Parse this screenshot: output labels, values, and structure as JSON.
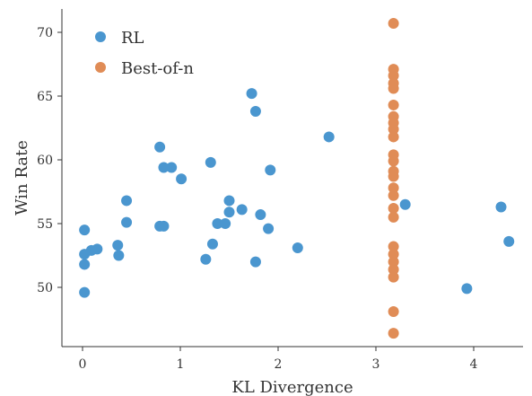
{
  "chart_data": {
    "type": "scatter",
    "xlabel": "KL Divergence",
    "ylabel": "Win Rate",
    "xlim": [
      -0.2,
      4.5
    ],
    "ylim": [
      45.5,
      72
    ],
    "xticks": [
      0,
      1,
      2,
      3,
      4
    ],
    "yticks": [
      50,
      55,
      60,
      65,
      70
    ],
    "legend_position": "top-left",
    "grid": false,
    "series": [
      {
        "name": "RL",
        "color": "#4a96cf",
        "points": [
          [
            0.02,
            54.5
          ],
          [
            0.02,
            52.6
          ],
          [
            0.02,
            51.8
          ],
          [
            0.02,
            49.6
          ],
          [
            0.09,
            52.9
          ],
          [
            0.15,
            53.0
          ],
          [
            0.36,
            53.3
          ],
          [
            0.37,
            52.5
          ],
          [
            0.45,
            56.8
          ],
          [
            0.45,
            55.1
          ],
          [
            0.79,
            61.0
          ],
          [
            0.79,
            54.8
          ],
          [
            0.83,
            54.8
          ],
          [
            0.83,
            59.4
          ],
          [
            0.91,
            59.4
          ],
          [
            1.01,
            58.5
          ],
          [
            1.26,
            52.2
          ],
          [
            1.31,
            59.8
          ],
          [
            1.33,
            53.4
          ],
          [
            1.38,
            55.0
          ],
          [
            1.46,
            55.0
          ],
          [
            1.5,
            56.8
          ],
          [
            1.5,
            55.9
          ],
          [
            1.63,
            56.1
          ],
          [
            1.73,
            65.2
          ],
          [
            1.77,
            63.8
          ],
          [
            1.77,
            52.0
          ],
          [
            1.82,
            55.7
          ],
          [
            1.9,
            54.6
          ],
          [
            1.92,
            59.2
          ],
          [
            2.2,
            53.1
          ],
          [
            2.52,
            61.8
          ],
          [
            3.3,
            56.5
          ],
          [
            3.93,
            49.9
          ],
          [
            4.28,
            56.3
          ],
          [
            4.36,
            53.6
          ]
        ]
      },
      {
        "name": "Best-of-n",
        "color": "#e08c56",
        "points": [
          [
            3.18,
            70.7
          ],
          [
            3.18,
            67.1
          ],
          [
            3.18,
            66.6
          ],
          [
            3.18,
            66.0
          ],
          [
            3.18,
            65.6
          ],
          [
            3.18,
            64.3
          ],
          [
            3.18,
            63.4
          ],
          [
            3.18,
            62.9
          ],
          [
            3.18,
            62.4
          ],
          [
            3.18,
            61.8
          ],
          [
            3.18,
            60.4
          ],
          [
            3.18,
            59.9
          ],
          [
            3.18,
            59.1
          ],
          [
            3.18,
            58.7
          ],
          [
            3.18,
            57.8
          ],
          [
            3.18,
            57.2
          ],
          [
            3.18,
            56.2
          ],
          [
            3.18,
            55.5
          ],
          [
            3.18,
            53.2
          ],
          [
            3.18,
            52.6
          ],
          [
            3.18,
            52.0
          ],
          [
            3.18,
            51.4
          ],
          [
            3.18,
            50.8
          ],
          [
            3.18,
            48.1
          ],
          [
            3.18,
            46.4
          ]
        ]
      }
    ]
  }
}
